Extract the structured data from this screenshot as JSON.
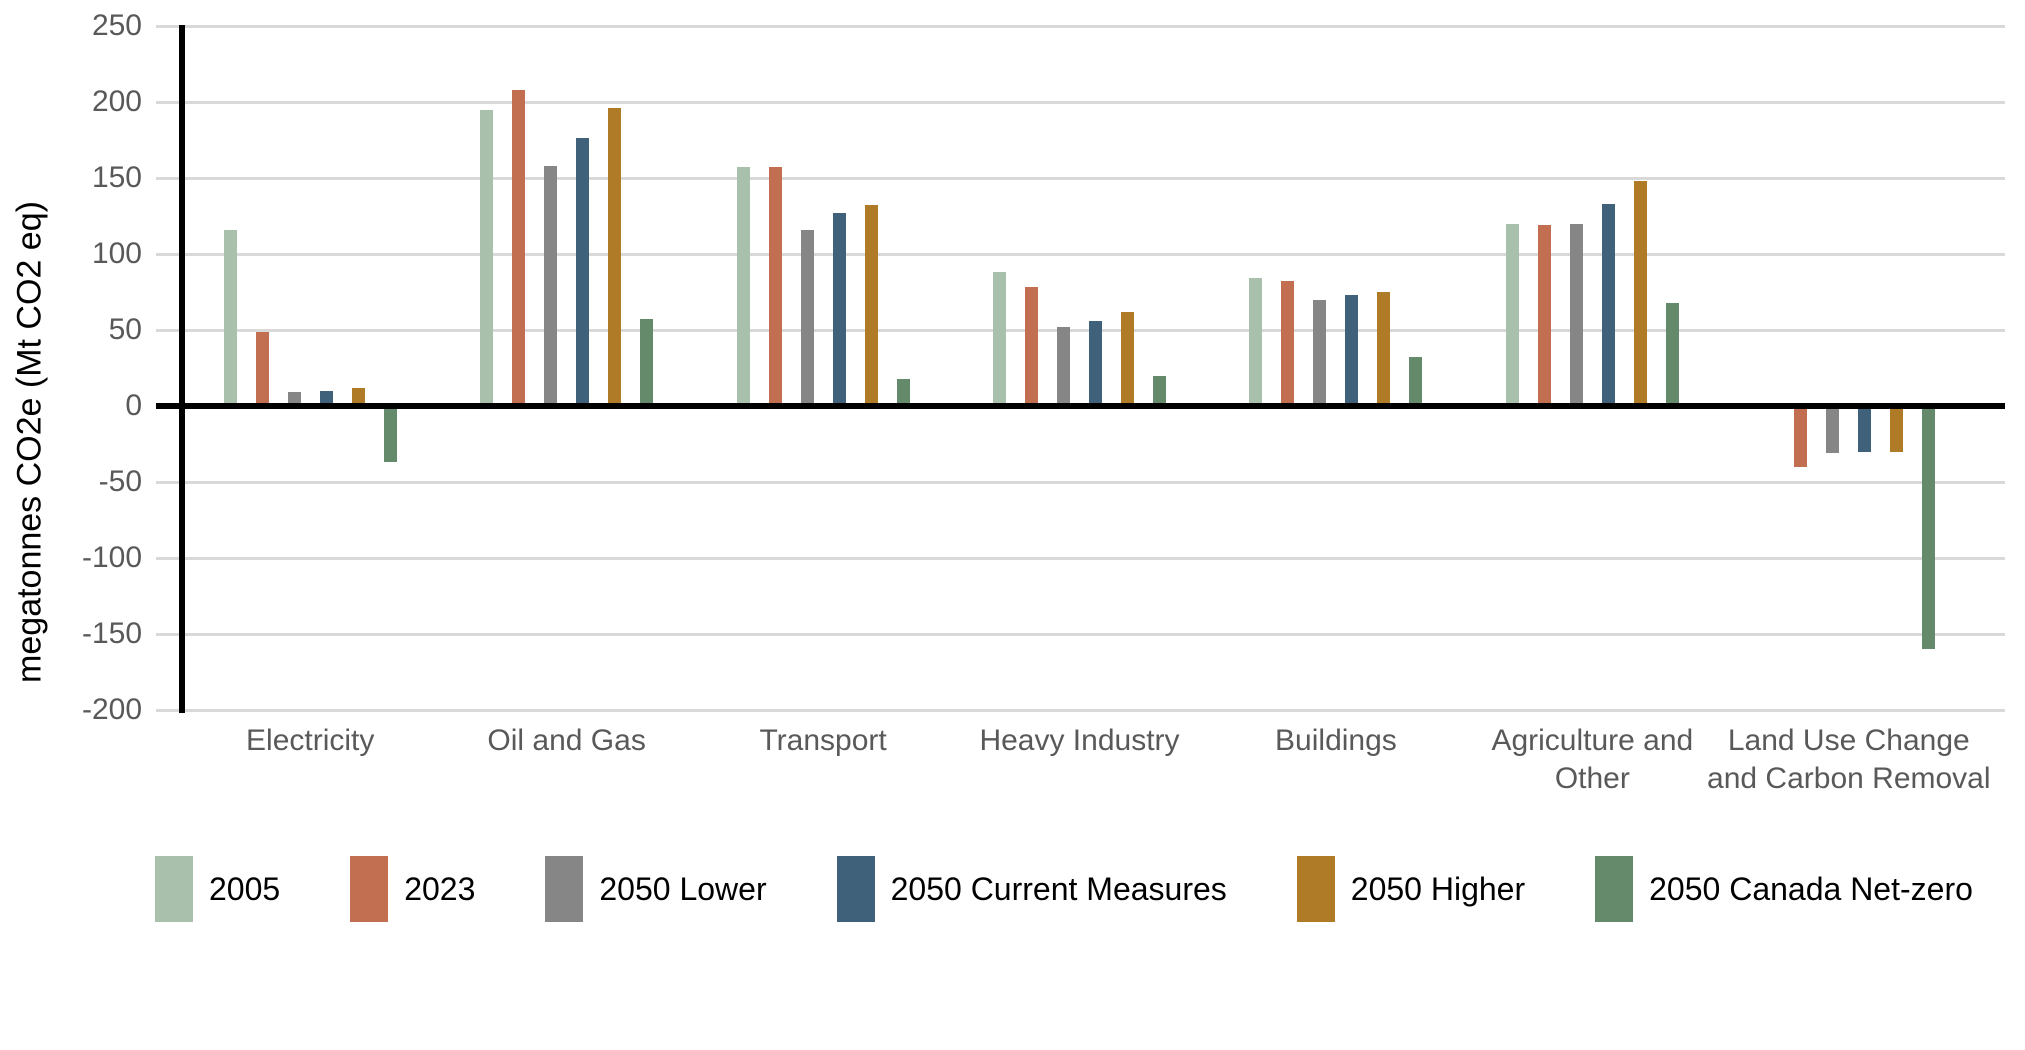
{
  "chart_data": {
    "type": "bar",
    "title": "",
    "xlabel": "",
    "ylabel": "megatonnes CO2e (Mt CO2 eq)",
    "ylim": [
      -200,
      250
    ],
    "yticks": [
      250,
      200,
      150,
      100,
      50,
      0,
      -50,
      -100,
      -150,
      -200
    ],
    "grid": "horizontal gridlines on",
    "legend_position": "bottom",
    "categories": [
      "Electricity",
      "Oil and Gas",
      "Transport",
      "Heavy Industry",
      "Buildings",
      "Agriculture and Other",
      "Land Use Change and Carbon Removal"
    ],
    "category_label_lines": [
      [
        "Electricity"
      ],
      [
        "Oil and Gas"
      ],
      [
        "Transport"
      ],
      [
        "Heavy Industry"
      ],
      [
        "Buildings"
      ],
      [
        "Agriculture and",
        "Other"
      ],
      [
        "Land Use Change",
        "and Carbon Removal"
      ]
    ],
    "series": [
      {
        "name": "2005",
        "color": "#a8c0ac",
        "values": [
          116,
          195,
          157,
          88,
          84,
          120,
          0
        ]
      },
      {
        "name": "2023",
        "color": "#c16e51",
        "values": [
          49,
          208,
          157,
          78,
          82,
          119,
          -40
        ]
      },
      {
        "name": "2050 Lower",
        "color": "#868686",
        "values": [
          9,
          158,
          116,
          52,
          70,
          120,
          -31
        ]
      },
      {
        "name": "2050 Current Measures",
        "color": "#3f617a",
        "values": [
          10,
          176,
          127,
          56,
          73,
          133,
          -30
        ]
      },
      {
        "name": "2050 Higher",
        "color": "#b07b26",
        "values": [
          12,
          196,
          132,
          62,
          75,
          148,
          -30
        ]
      },
      {
        "name": "2050 Canada Net-zero",
        "color": "#648a6b",
        "values": [
          -37,
          57,
          18,
          20,
          32,
          68,
          -160
        ]
      }
    ],
    "colors": {
      "background": "#ffffff",
      "gridline": "#d9d9d9",
      "axis_line": "#000000",
      "tick_label_text": "#595959",
      "category_label_text": "#595959",
      "legend_text": "#000000",
      "axis_title_text": "#000000"
    },
    "notes": "2005 has no bar (zero) in Land Use Change and Carbon Removal category"
  }
}
